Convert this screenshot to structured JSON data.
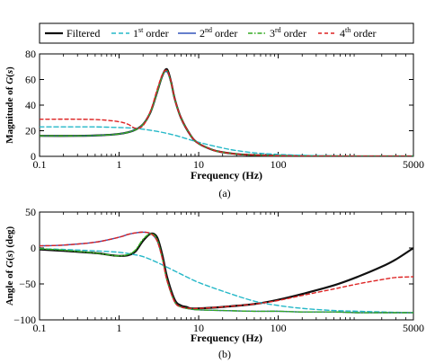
{
  "legend": {
    "entries": [
      {
        "text": "Filtered",
        "base": "Filtered",
        "sup": "",
        "rest": "",
        "color": "#111111",
        "dash": "",
        "width": 2.2
      },
      {
        "text": "1st order",
        "base": "1",
        "sup": "st",
        "rest": " order",
        "color": "#25b8c8",
        "dash": "5,3",
        "width": 1.4
      },
      {
        "text": "2nd order",
        "base": "2",
        "sup": "nd",
        "rest": " order",
        "color": "#3355bb",
        "dash": "",
        "width": 1.4
      },
      {
        "text": "3rd order",
        "base": "3",
        "sup": "rd",
        "rest": " order",
        "color": "#33aa22",
        "dash": "5,2,1.5,2",
        "width": 1.4
      },
      {
        "text": "4th order",
        "base": "4",
        "sup": "th",
        "rest": " order",
        "color": "#dd2222",
        "dash": "4,3",
        "width": 1.4
      }
    ]
  },
  "chart_data": [
    {
      "type": "line",
      "panel_label": "(a)",
      "xlabel": "Frequency (Hz)",
      "ylabel": "Magnitude of G(s)",
      "xscale": "log",
      "xlim": [
        0.1,
        5000
      ],
      "ylim": [
        0,
        80
      ],
      "xticks": [
        0.1,
        1,
        10,
        100,
        5000
      ],
      "xtick_labels": [
        "0.1",
        "1",
        "10",
        "100",
        "5000"
      ],
      "yticks": [
        0,
        20,
        40,
        60,
        80
      ],
      "ytick_labels": [
        "0",
        "20",
        "40",
        "60",
        "80"
      ],
      "grid": false,
      "series": [
        {
          "name": "Filtered",
          "x": [
            0.1,
            0.3,
            0.6,
            1,
            1.5,
            2,
            2.5,
            3,
            3.5,
            4,
            4.5,
            5,
            6,
            8,
            10,
            15,
            20,
            30,
            50,
            100,
            200,
            500,
            1000,
            2000,
            5000
          ],
          "y": [
            16,
            16,
            16.5,
            17.5,
            20,
            25,
            35,
            50,
            63,
            68,
            58,
            45,
            30,
            16,
            10,
            5,
            3.2,
            1.8,
            1,
            0.5,
            0.2,
            0.1,
            0,
            0,
            0
          ]
        },
        {
          "name": "1st order",
          "x": [
            0.1,
            0.3,
            0.5,
            1,
            1.5,
            2,
            3,
            5,
            10,
            20,
            30,
            50,
            100,
            200,
            500,
            1000,
            5000
          ],
          "y": [
            23,
            23,
            23,
            22.5,
            22,
            21.2,
            19.5,
            16.5,
            11,
            6.5,
            4.5,
            2.8,
            1.5,
            0.8,
            0.3,
            0.1,
            0
          ]
        },
        {
          "name": "2nd order",
          "x": [
            0.1,
            0.3,
            0.6,
            1,
            1.5,
            2,
            2.5,
            3,
            3.5,
            4,
            4.5,
            5,
            6,
            8,
            10,
            15,
            20,
            30,
            50,
            100,
            200,
            500,
            1000,
            2000,
            5000
          ],
          "y": [
            16,
            16,
            16.5,
            17.5,
            20,
            25,
            35,
            50,
            63,
            66,
            57,
            45,
            30,
            16,
            10,
            5,
            3.2,
            1.8,
            1,
            0.5,
            0.2,
            0.1,
            0,
            0,
            0
          ]
        },
        {
          "name": "3rd order",
          "x": [
            0.1,
            0.3,
            0.6,
            1,
            1.5,
            2,
            2.5,
            3,
            3.5,
            4,
            4.5,
            5,
            6,
            8,
            10,
            15,
            20,
            30,
            50,
            100,
            200,
            500,
            1000,
            2000,
            5000
          ],
          "y": [
            16,
            16,
            16.5,
            17.5,
            20,
            25,
            35,
            50,
            63,
            67,
            57,
            45,
            30,
            16,
            10,
            5,
            3.2,
            1.8,
            1,
            0.5,
            0.2,
            0.1,
            0,
            0,
            0
          ]
        },
        {
          "name": "4th order",
          "x": [
            0.1,
            0.3,
            0.6,
            1,
            1.3,
            1.6,
            2,
            2.5,
            3,
            3.5,
            4,
            4.5,
            5,
            6,
            8,
            10,
            15,
            20,
            30,
            50,
            100,
            200,
            500,
            1000,
            2000,
            5000
          ],
          "y": [
            29,
            29,
            28.5,
            27,
            25,
            22,
            24,
            36,
            52,
            64,
            67,
            58,
            45,
            30,
            16,
            10,
            5,
            3.2,
            1.8,
            1,
            0.5,
            0.2,
            0.1,
            0,
            0,
            0
          ]
        }
      ]
    },
    {
      "type": "line",
      "panel_label": "(b)",
      "xlabel": "Frequency (Hz)",
      "ylabel": "Angle of G(s) (deg)",
      "xscale": "log",
      "xlim": [
        0.1,
        5000
      ],
      "ylim": [
        -100,
        50
      ],
      "xticks": [
        0.1,
        1,
        10,
        100,
        5000
      ],
      "xtick_labels": [
        "0.1",
        "1",
        "10",
        "100",
        "5000"
      ],
      "yticks": [
        -100,
        -50,
        0,
        50
      ],
      "ytick_labels": [
        "−100",
        "−50",
        "0",
        "50"
      ],
      "grid": false,
      "series": [
        {
          "name": "Filtered",
          "x": [
            0.1,
            0.2,
            0.5,
            0.8,
            1,
            1.3,
            1.6,
            2,
            2.5,
            3,
            3.5,
            4,
            5,
            6,
            7,
            8,
            10,
            20,
            50,
            100,
            200,
            500,
            1000,
            2000,
            3000,
            5000
          ],
          "y": [
            -2,
            -4,
            -7,
            -10,
            -11,
            -10,
            -5,
            10,
            20,
            15,
            -10,
            -40,
            -72,
            -80,
            -82,
            -84,
            -84,
            -82,
            -78,
            -72,
            -64,
            -52,
            -40,
            -26,
            -16,
            0
          ]
        },
        {
          "name": "1st order",
          "x": [
            0.1,
            0.2,
            0.5,
            1,
            1.5,
            2,
            3,
            5,
            7,
            10,
            20,
            50,
            100,
            200,
            500,
            1000,
            2000,
            5000
          ],
          "y": [
            -1,
            -2,
            -4,
            -6,
            -9,
            -12,
            -20,
            -32,
            -40,
            -48,
            -60,
            -74,
            -80,
            -84,
            -87,
            -88,
            -89,
            -90
          ]
        },
        {
          "name": "2nd order",
          "x": [
            0.1,
            0.2,
            0.5,
            1,
            1.3,
            1.6,
            2,
            2.5,
            3,
            3.5,
            4,
            5,
            6,
            8,
            10,
            20,
            50,
            100,
            200,
            500,
            1000,
            2000,
            5000
          ],
          "y": [
            3,
            4,
            8,
            15,
            19,
            21,
            22,
            20,
            10,
            -15,
            -45,
            -75,
            -82,
            -85,
            -86,
            -87,
            -88,
            -88,
            -89,
            -89,
            -90,
            -90,
            -90
          ]
        },
        {
          "name": "3rd order",
          "x": [
            0.1,
            0.2,
            0.5,
            0.8,
            1,
            1.3,
            1.6,
            2,
            2.5,
            3,
            3.5,
            4,
            5,
            6,
            8,
            10,
            20,
            50,
            100,
            200,
            500,
            1000,
            2000,
            5000
          ],
          "y": [
            -1,
            -3,
            -7,
            -10,
            -11,
            -9,
            -3,
            12,
            20,
            12,
            -15,
            -45,
            -75,
            -82,
            -85,
            -86,
            -87,
            -88,
            -88,
            -89,
            -89,
            -90,
            -90,
            -90
          ]
        },
        {
          "name": "4th order",
          "x": [
            0.1,
            0.2,
            0.5,
            1,
            1.3,
            1.6,
            2,
            2.5,
            3,
            3.5,
            4,
            5,
            6,
            8,
            10,
            20,
            50,
            100,
            200,
            500,
            1000,
            2000,
            3000,
            5000
          ],
          "y": [
            3,
            4,
            8,
            15,
            19,
            21,
            22,
            20,
            10,
            -15,
            -45,
            -75,
            -82,
            -84,
            -84,
            -82,
            -78,
            -73,
            -66,
            -57,
            -50,
            -44,
            -41,
            -40
          ]
        }
      ]
    }
  ]
}
